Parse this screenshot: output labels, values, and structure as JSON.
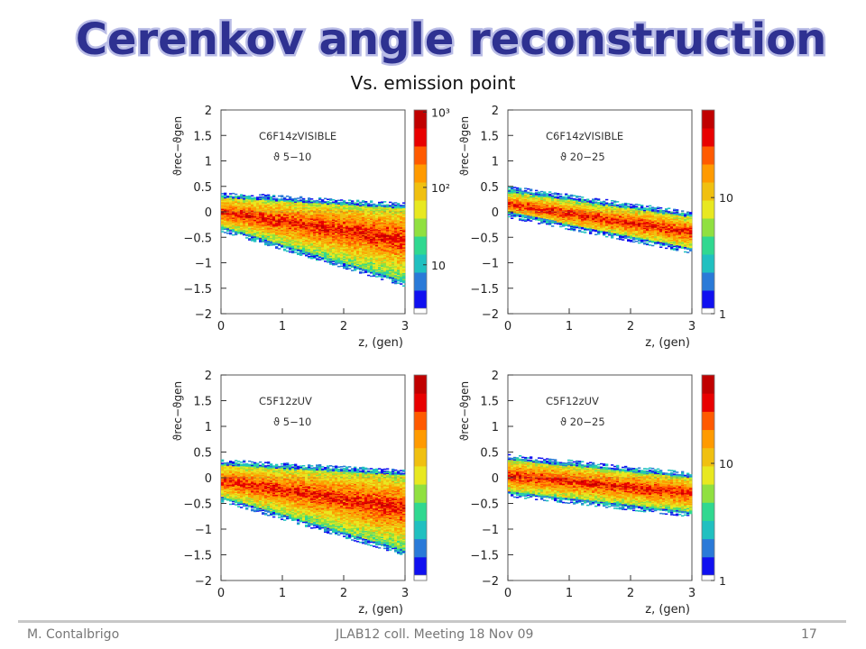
{
  "title": "Cerenkov angle reconstruction",
  "subtitle": "Vs. emission point",
  "footer": {
    "author": "M. Contalbrigo",
    "meeting": "JLAB12 coll. Meeting 18 Nov 09",
    "page": "17"
  },
  "colors": {
    "title_fill": "#2e3191",
    "title_outline": "#b9bce6",
    "palette": [
      "#1010f0",
      "#2a7ad8",
      "#20c0c0",
      "#30d890",
      "#90e040",
      "#e8e820",
      "#f0c010",
      "#ff9a00",
      "#ff5a00",
      "#e80000",
      "#c00000"
    ]
  },
  "chart_data": [
    {
      "type": "heatmap",
      "label_line1": "C6F14zVISIBLE",
      "label_line2": "ϑ 5−10",
      "xlabel": "z, (gen)",
      "ylabel": "ϑrec−ϑgen",
      "xlim": [
        0,
        3
      ],
      "ylim": [
        -2,
        2
      ],
      "xticks": [
        "0",
        "1",
        "2",
        "3"
      ],
      "yticks": [
        "2",
        "1.5",
        "1",
        "0.5",
        "0",
        "−0.5",
        "−1",
        "−1.5",
        "−2"
      ],
      "colorbar_ticks": [
        {
          "value": "10³",
          "frac": 0.99
        },
        {
          "value": "10²",
          "frac": 0.62
        },
        {
          "value": "10",
          "frac": 0.24
        }
      ],
      "band": {
        "upper_start": 0.33,
        "upper_end": 0.12,
        "lower_start": -0.32,
        "lower_end": -1.4,
        "core_start": 0.0,
        "core_end": -0.55
      }
    },
    {
      "type": "heatmap",
      "label_line1": "C6F14zVISIBLE",
      "label_line2": "ϑ 20−25",
      "xlabel": "z, (gen)",
      "ylabel": "ϑrec−ϑgen",
      "xlim": [
        0,
        3
      ],
      "ylim": [
        -2,
        2
      ],
      "xticks": [
        "0",
        "1",
        "2",
        "3"
      ],
      "yticks": [
        "2",
        "1.5",
        "1",
        "0.5",
        "0",
        "−0.5",
        "−1",
        "−1.5",
        "−2"
      ],
      "colorbar_ticks": [
        {
          "value": "10",
          "frac": 0.57
        },
        {
          "value": "1",
          "frac": 0.0
        }
      ],
      "band": {
        "upper_start": 0.45,
        "upper_end": -0.05,
        "lower_start": -0.05,
        "lower_end": -0.75,
        "core_start": 0.15,
        "core_end": -0.4
      }
    },
    {
      "type": "heatmap",
      "label_line1": "C5F12zUV",
      "label_line2": "ϑ 5−10",
      "xlabel": "z, (gen)",
      "ylabel": "ϑrec−ϑgen",
      "xlim": [
        0,
        3
      ],
      "ylim": [
        -2,
        2
      ],
      "xticks": [
        "0",
        "1",
        "2",
        "3"
      ],
      "yticks": [
        "2",
        "1.5",
        "1",
        "0.5",
        "0",
        "−0.5",
        "−1",
        "−1.5",
        "−2"
      ],
      "colorbar_ticks": [],
      "band": {
        "upper_start": 0.3,
        "upper_end": 0.1,
        "lower_start": -0.4,
        "lower_end": -1.45,
        "core_start": -0.05,
        "core_end": -0.6
      }
    },
    {
      "type": "heatmap",
      "label_line1": "C5F12zUV",
      "label_line2": "ϑ 20−25",
      "xlabel": "z, (gen)",
      "ylabel": "ϑrec−ϑgen",
      "xlim": [
        0,
        3
      ],
      "ylim": [
        -2,
        2
      ],
      "xticks": [
        "0",
        "1",
        "2",
        "3"
      ],
      "yticks": [
        "2",
        "1.5",
        "1",
        "0.5",
        "0",
        "−0.5",
        "−1",
        "−1.5",
        "−2"
      ],
      "colorbar_ticks": [
        {
          "value": "10",
          "frac": 0.57
        },
        {
          "value": "1",
          "frac": 0.0
        }
      ],
      "band": {
        "upper_start": 0.4,
        "upper_end": 0.05,
        "lower_start": -0.3,
        "lower_end": -0.7,
        "core_start": 0.05,
        "core_end": -0.3
      }
    }
  ]
}
